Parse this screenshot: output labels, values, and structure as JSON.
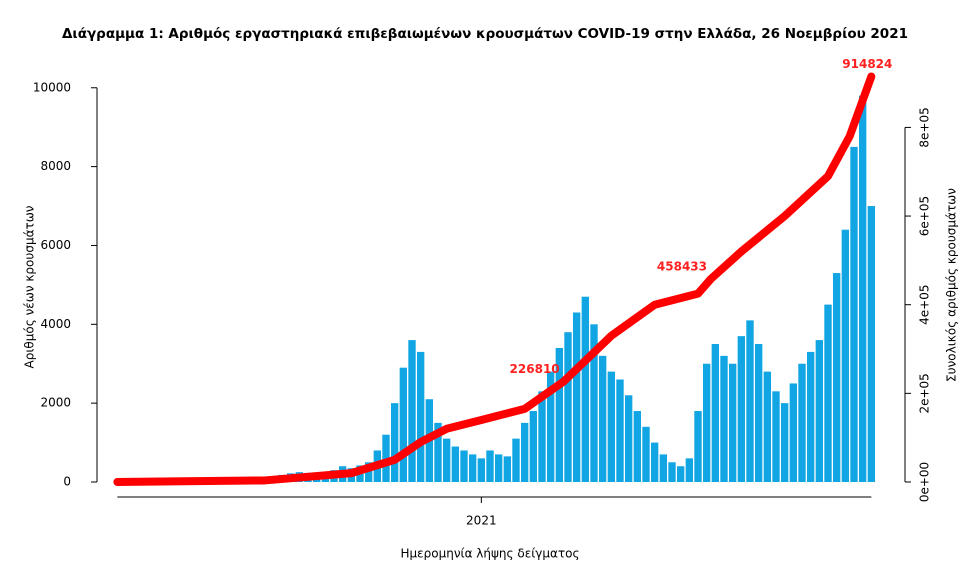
{
  "chart_data": {
    "type": "bar",
    "title": "Διάγραμμα 1: Αριθμός εργαστηριακά επιβεβαιωμένων κρουσμάτων COVID-19 στην Ελλάδα, 26 Νοεμβρίου 2021",
    "xlabel": "Ημερομηνία λήψης δείγματος",
    "ylabel": "Αριθμός νέων κρουσμάτων",
    "y2label": "Συνολικός αριθμός κρουσμάτων",
    "xlim": [
      2020.12,
      2021.92
    ],
    "xticks": [
      2021
    ],
    "ylim": [
      0,
      10400
    ],
    "yticks": [
      0,
      2000,
      4000,
      6000,
      8000,
      10000
    ],
    "y2lim": [
      0,
      925000
    ],
    "y2ticks": [
      {
        "value": 0,
        "label": "0e+00"
      },
      {
        "value": 200000,
        "label": "2e+05"
      },
      {
        "value": 400000,
        "label": "4e+05"
      },
      {
        "value": 600000,
        "label": "6e+05"
      },
      {
        "value": 800000,
        "label": "8e+05"
      }
    ],
    "series": [
      {
        "type": "bar",
        "color": "#12a5e3",
        "x": [
          2020.16,
          2020.18,
          2020.2,
          2020.22,
          2020.24,
          2020.26,
          2020.28,
          2020.3,
          2020.32,
          2020.34,
          2020.36,
          2020.38,
          2020.4,
          2020.42,
          2020.44,
          2020.46,
          2020.48,
          2020.5,
          2020.52,
          2020.54,
          2020.56,
          2020.58,
          2020.6,
          2020.62,
          2020.64,
          2020.66,
          2020.68,
          2020.7,
          2020.72,
          2020.74,
          2020.76,
          2020.78,
          2020.8,
          2020.82,
          2020.84,
          2020.86,
          2020.88,
          2020.9,
          2020.92,
          2020.94,
          2020.96,
          2020.98,
          2021.0,
          2021.02,
          2021.04,
          2021.06,
          2021.08,
          2021.1,
          2021.12,
          2021.14,
          2021.16,
          2021.18,
          2021.2,
          2021.22,
          2021.24,
          2021.26,
          2021.28,
          2021.3,
          2021.32,
          2021.34,
          2021.36,
          2021.38,
          2021.4,
          2021.42,
          2021.44,
          2021.46,
          2021.48,
          2021.5,
          2021.52,
          2021.54,
          2021.56,
          2021.58,
          2021.6,
          2021.62,
          2021.64,
          2021.66,
          2021.68,
          2021.7,
          2021.72,
          2021.74,
          2021.76,
          2021.78,
          2021.8,
          2021.82,
          2021.84,
          2021.86,
          2021.88,
          2021.9
        ],
        "values": [
          5,
          40,
          60,
          80,
          70,
          50,
          20,
          15,
          10,
          15,
          10,
          20,
          15,
          25,
          30,
          30,
          40,
          60,
          120,
          180,
          220,
          250,
          230,
          200,
          250,
          300,
          400,
          350,
          420,
          500,
          800,
          1200,
          2000,
          2900,
          3600,
          3300,
          2100,
          1500,
          1100,
          900,
          800,
          700,
          600,
          800,
          700,
          650,
          1100,
          1500,
          1800,
          2300,
          2800,
          3400,
          3800,
          4300,
          4700,
          4000,
          3200,
          2800,
          2600,
          2200,
          1800,
          1400,
          1000,
          700,
          500,
          400,
          600,
          1800,
          3000,
          3500,
          3200,
          3000,
          3700,
          4100,
          3500,
          2800,
          2300,
          2000,
          2500,
          3000,
          3300,
          3600,
          4500,
          5300,
          6400,
          8500,
          9800,
          7000
        ]
      },
      {
        "type": "line",
        "color": "#ff0000",
        "axis": "y2",
        "x": [
          2020.16,
          2020.5,
          2020.7,
          2020.8,
          2020.86,
          2020.92,
          2021.0,
          2021.1,
          2021.19,
          2021.3,
          2021.4,
          2021.5,
          2021.53,
          2021.6,
          2021.7,
          2021.8,
          2021.85,
          2021.9
        ],
        "values": [
          0,
          3500,
          20000,
          50000,
          90000,
          120000,
          140000,
          165000,
          226810,
          330000,
          400000,
          425000,
          458433,
          520000,
          600000,
          690000,
          780000,
          914824
        ]
      }
    ],
    "annotations": [
      {
        "x": 2021.19,
        "value": 226810
      },
      {
        "x": 2021.53,
        "value": 458433
      },
      {
        "x": 2021.9,
        "value": 914824
      }
    ]
  }
}
